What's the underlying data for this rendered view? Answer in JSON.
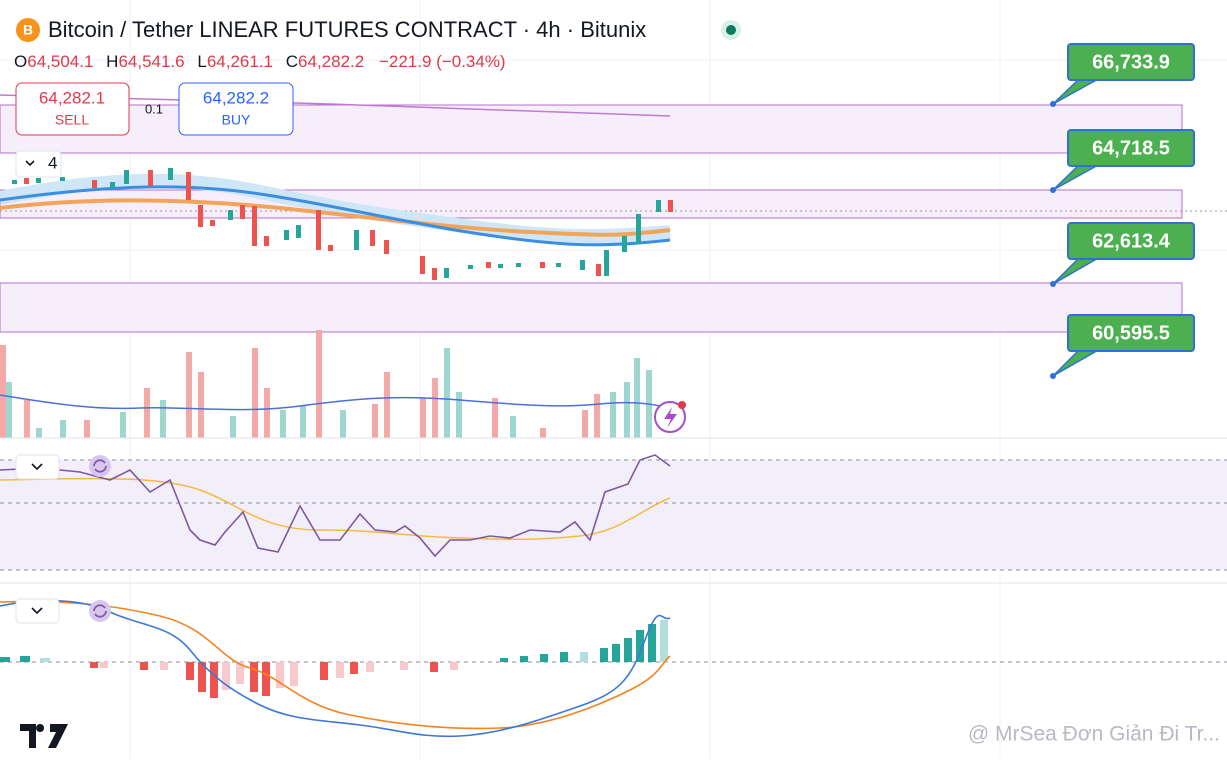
{
  "header": {
    "symbol_title": "Bitcoin / Tether LINEAR FUTURES CONTRACT · 4h · Bitunix",
    "ohlc": {
      "o_label": "O",
      "o": "64,504.1",
      "h_label": "H",
      "h": "64,541.6",
      "l_label": "L",
      "l": "64,261.1",
      "c_label": "C",
      "c": "64,282.2",
      "change": "−221.9 (−0.34%)"
    }
  },
  "trade": {
    "sell_price": "64,282.1",
    "sell_label": "SELL",
    "spread": "0.1",
    "buy_price": "64,282.2",
    "buy_label": "BUY"
  },
  "indicator_count": "4",
  "levels": [
    "66,733.9",
    "64,718.5",
    "62,613.4",
    "60,595.5"
  ],
  "watermark": "@ MrSea Đơn Giản Đi Tr..."
}
